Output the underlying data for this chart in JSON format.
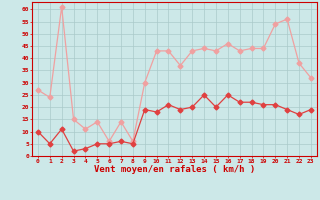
{
  "x": [
    0,
    1,
    2,
    3,
    4,
    5,
    6,
    7,
    8,
    9,
    10,
    11,
    12,
    13,
    14,
    15,
    16,
    17,
    18,
    19,
    20,
    21,
    22,
    23
  ],
  "wind_avg": [
    10,
    5,
    11,
    2,
    3,
    5,
    5,
    6,
    5,
    19,
    18,
    21,
    19,
    20,
    25,
    20,
    25,
    22,
    22,
    21,
    21,
    19,
    17,
    19
  ],
  "wind_gust": [
    27,
    24,
    61,
    15,
    11,
    14,
    6,
    14,
    6,
    30,
    43,
    43,
    37,
    43,
    44,
    43,
    46,
    43,
    44,
    44,
    54,
    56,
    38,
    32
  ],
  "line_color_avg": "#e04040",
  "line_color_gust": "#f0a0a0",
  "bg_color": "#cce8e8",
  "grid_color": "#aacaca",
  "xlabel": "Vent moyen/en rafales ( km/h )",
  "xlabel_color": "#cc0000",
  "tick_color": "#cc0000",
  "ylim": [
    0,
    63
  ],
  "yticks": [
    0,
    5,
    10,
    15,
    20,
    25,
    30,
    35,
    40,
    45,
    50,
    55,
    60
  ],
  "marker": "D",
  "markersize": 2.5,
  "linewidth": 0.9
}
